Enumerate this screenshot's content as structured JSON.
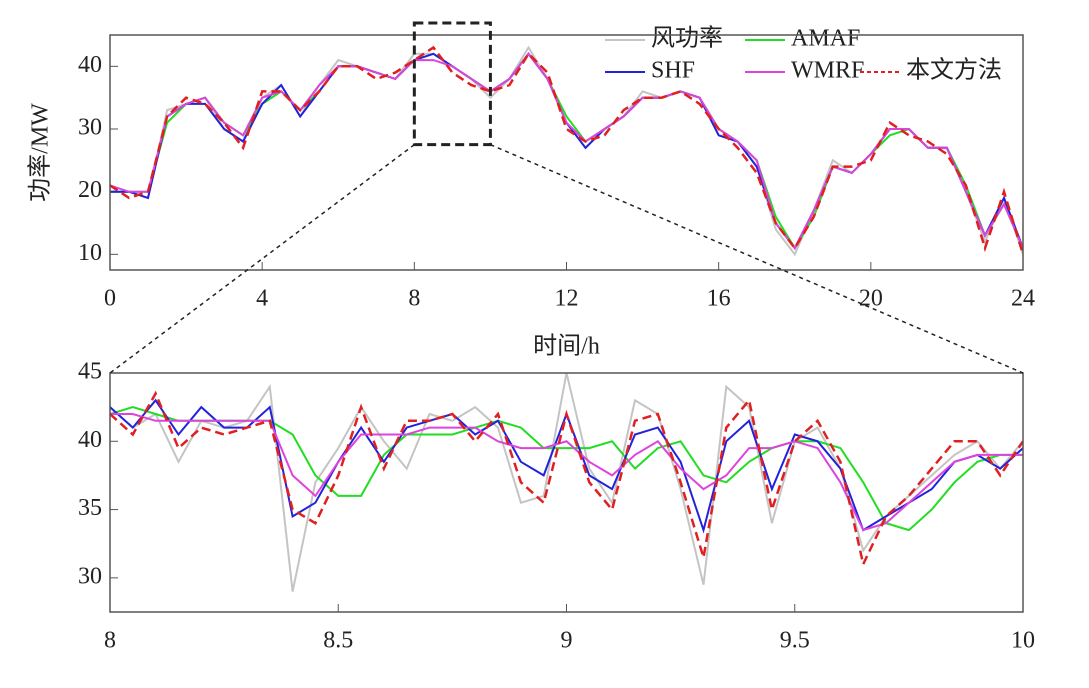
{
  "chart_data": [
    {
      "type": "line",
      "xlabel": "时间/h",
      "ylabel": "功率/MW",
      "legend": "upper right",
      "x": [
        0,
        0.5,
        1,
        1.5,
        2,
        2.5,
        3,
        3.5,
        4,
        4.5,
        5,
        5.5,
        6,
        6.5,
        7,
        7.5,
        8,
        8.5,
        9,
        9.5,
        10,
        10.5,
        11,
        11.5,
        12,
        12.5,
        13,
        13.5,
        14,
        14.5,
        15,
        15.5,
        16,
        16.5,
        17,
        17.5,
        18,
        18.5,
        19,
        19.5,
        20,
        20.5,
        21,
        21.5,
        22,
        22.5,
        23,
        23.5,
        24
      ],
      "series": [
        {
          "name": "风功率",
          "color": "#c4c4c4",
          "values": [
            20,
            20,
            19,
            33,
            34,
            35,
            30,
            28,
            35,
            37,
            32,
            37,
            41,
            40,
            39,
            38,
            42,
            42,
            40,
            38,
            35,
            38,
            43,
            38,
            31,
            27,
            30,
            32,
            36,
            35,
            36,
            35,
            29,
            28,
            24,
            14,
            10,
            17,
            25,
            23,
            26,
            30,
            30,
            27,
            27,
            20,
            12,
            19,
            10
          ]
        },
        {
          "name": "AMAF",
          "color": "#22dd22",
          "values": [
            20,
            20,
            20,
            31,
            34,
            35,
            31,
            29,
            34,
            36,
            33,
            36,
            40,
            40,
            39,
            38,
            41,
            42,
            40,
            38,
            36,
            38,
            42,
            38,
            32,
            28,
            30,
            32,
            35,
            35,
            36,
            35,
            30,
            28,
            25,
            16,
            11,
            16,
            24,
            23,
            26,
            29,
            30,
            27,
            27,
            21,
            13,
            18,
            11
          ]
        },
        {
          "name": "SHF",
          "color": "#2222dd",
          "values": [
            20,
            20,
            19,
            32,
            34,
            34,
            30,
            28,
            34,
            37,
            32,
            36,
            40,
            40,
            39,
            38,
            41,
            42,
            40,
            38,
            36,
            38,
            42,
            38,
            31,
            27,
            30,
            32,
            35,
            35,
            36,
            35,
            29,
            28,
            24,
            15,
            11,
            17,
            24,
            23,
            26,
            30,
            30,
            27,
            27,
            20,
            13,
            19,
            11
          ]
        },
        {
          "name": "WMRF",
          "color": "#dd44dd",
          "values": [
            21,
            20,
            20,
            32,
            34,
            35,
            31,
            29,
            35,
            36,
            33,
            37,
            40,
            40,
            39,
            38,
            41,
            41,
            40,
            38,
            36,
            38,
            42,
            38,
            31,
            28,
            30,
            32,
            35,
            35,
            36,
            35,
            30,
            28,
            25,
            15,
            11,
            17,
            24,
            23,
            26,
            30,
            30,
            27,
            27,
            20,
            13,
            18,
            11
          ]
        },
        {
          "name": "本文方法",
          "color": "#e02020",
          "dashed": true,
          "values": [
            21,
            19,
            20,
            32,
            35,
            34,
            31,
            27,
            36,
            36,
            33,
            36,
            40,
            40,
            38,
            39,
            41,
            43,
            39,
            37,
            36,
            37,
            42,
            39,
            30,
            28,
            29,
            33,
            35,
            35,
            36,
            34,
            30,
            27,
            23,
            15,
            11,
            16,
            24,
            24,
            25,
            31,
            29,
            28,
            26,
            21,
            11,
            20,
            10
          ]
        }
      ],
      "xlim": [
        0,
        24
      ],
      "xticks": [
        0,
        4,
        8,
        12,
        16,
        20,
        24
      ],
      "ylim": [
        7.5,
        45
      ],
      "yticks": [
        10,
        20,
        30,
        40
      ]
    },
    {
      "type": "line",
      "x": [
        8,
        8.05,
        8.1,
        8.15,
        8.2,
        8.25,
        8.3,
        8.35,
        8.4,
        8.45,
        8.5,
        8.55,
        8.6,
        8.65,
        8.7,
        8.75,
        8.8,
        8.85,
        8.9,
        8.95,
        9,
        9.05,
        9.1,
        9.15,
        9.2,
        9.25,
        9.3,
        9.35,
        9.4,
        9.45,
        9.5,
        9.55,
        9.6,
        9.65,
        9.7,
        9.75,
        9.8,
        9.85,
        9.9,
        9.95,
        10
      ],
      "series": [
        {
          "color": "#c4c4c4",
          "values": [
            42.5,
            41,
            42,
            38.5,
            41.5,
            41,
            41.5,
            44,
            29,
            37,
            39.5,
            42.5,
            40,
            38,
            42,
            41.5,
            42.5,
            41,
            35.5,
            36,
            45,
            38,
            35.5,
            43,
            42,
            36.5,
            29.5,
            44,
            42.5,
            34,
            40,
            41,
            38,
            32,
            34.5,
            36,
            37.5,
            39,
            40,
            38,
            40
          ]
        },
        {
          "color": "#22dd22",
          "values": [
            42,
            42.5,
            42,
            41.5,
            41.5,
            41.5,
            41.5,
            41.5,
            40.5,
            37.5,
            36,
            36,
            39,
            40.5,
            40.5,
            40.5,
            41,
            41.5,
            41,
            39.5,
            39.5,
            39.5,
            40,
            38,
            39.5,
            40,
            37.5,
            37,
            38.5,
            39.5,
            40,
            40,
            39.5,
            37,
            34,
            33.5,
            35,
            37,
            38.5,
            39,
            39
          ]
        },
        {
          "color": "#2222dd",
          "values": [
            42.5,
            41,
            43,
            40.5,
            42.5,
            41,
            41,
            42.5,
            34.5,
            35.5,
            38.5,
            41,
            38.5,
            41,
            41.5,
            42,
            40.5,
            41.5,
            38.5,
            37.5,
            42,
            37.5,
            36.5,
            40.5,
            41,
            38.5,
            33.5,
            40,
            41.5,
            36.5,
            40.5,
            40,
            38,
            33.5,
            34.5,
            35.5,
            36.5,
            38.5,
            39,
            38,
            39.5
          ]
        },
        {
          "color": "#dd44dd",
          "values": [
            42,
            42,
            41.5,
            41.5,
            41.5,
            41.5,
            41.5,
            41.5,
            37.5,
            36,
            38.5,
            40.5,
            40.5,
            40.5,
            41,
            41,
            41,
            40,
            39.5,
            39.5,
            40,
            38.5,
            37.5,
            39,
            40,
            38,
            36.5,
            37.5,
            39.5,
            39.5,
            40,
            39.5,
            37,
            33.5,
            34,
            35.5,
            37,
            38.5,
            39,
            39,
            39
          ]
        },
        {
          "color": "#e02020",
          "dashed": true,
          "values": [
            42,
            40.5,
            43.5,
            39.5,
            41,
            40.5,
            41,
            41.5,
            35,
            34,
            37.5,
            42.5,
            38,
            41.5,
            41.5,
            42,
            40,
            42,
            37,
            35.5,
            42,
            37,
            35,
            41.5,
            42,
            37,
            31.5,
            41,
            43,
            35,
            40,
            41.5,
            38.5,
            31,
            34.5,
            36,
            38,
            40,
            40,
            37.5,
            40
          ]
        }
      ],
      "xlim": [
        8,
        10
      ],
      "xticks": [
        8,
        8.5,
        9,
        9.5,
        10
      ],
      "ylim": [
        27.5,
        45
      ],
      "yticks": [
        30,
        35,
        40,
        45
      ]
    }
  ]
}
